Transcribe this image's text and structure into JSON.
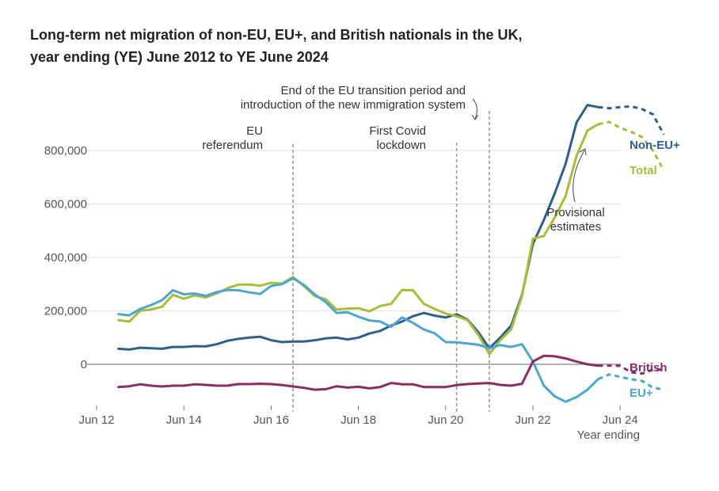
{
  "title": {
    "line1": "Long-term net migration of non-EU, EU+, and British nationals in the UK,",
    "line2": "year ending (YE) June 2012 to YE June 2024"
  },
  "chart_data": {
    "type": "line",
    "x_tick_labels": [
      "Jun 12",
      "Jun 14",
      "Jun 16",
      "Jun 18",
      "Jun 20",
      "Jun 22",
      "Jun 24"
    ],
    "x_tick_years": [
      2012,
      2014,
      2016,
      2018,
      2020,
      2022,
      2024
    ],
    "xlabel": "Year ending",
    "y_tick_labels": [
      "0",
      "200,000",
      "400,000",
      "600,000",
      "800,000"
    ],
    "y_tick_values": [
      0,
      200000,
      400000,
      600000,
      800000
    ],
    "ylim": [
      -150000,
      1000000
    ],
    "grid": "horizontal",
    "x_start": 2012.5,
    "x_step": 0.25,
    "provisional_from": 2023.5,
    "series": [
      {
        "name": "Non-EU+",
        "color": "#2e5f8f",
        "values": [
          58000,
          55000,
          62000,
          60000,
          58000,
          65000,
          65000,
          68000,
          67000,
          75000,
          88000,
          95000,
          100000,
          103000,
          90000,
          83000,
          85000,
          85000,
          90000,
          97000,
          100000,
          93000,
          100000,
          115000,
          125000,
          145000,
          160000,
          180000,
          192000,
          182000,
          175000,
          187000,
          167000,
          120000,
          60000,
          100000,
          145000,
          260000,
          450000,
          540000,
          640000,
          750000,
          905000,
          970000,
          962000,
          958000,
          962000,
          965000,
          955000,
          935000,
          860000
        ]
      },
      {
        "name": "Total",
        "color": "#a8bd3a",
        "values": [
          165000,
          160000,
          200000,
          205000,
          215000,
          260000,
          245000,
          258000,
          250000,
          265000,
          285000,
          298000,
          298000,
          294000,
          305000,
          302000,
          327000,
          293000,
          255000,
          243000,
          205000,
          208000,
          210000,
          198000,
          218000,
          226000,
          278000,
          277000,
          226000,
          207000,
          190000,
          180000,
          165000,
          110000,
          38000,
          90000,
          130000,
          255000,
          470000,
          480000,
          550000,
          630000,
          780000,
          875000,
          898000,
          907000,
          885000,
          870000,
          850000,
          800000,
          725000
        ]
      },
      {
        "name": "EU+",
        "color": "#4ea5d0",
        "values": [
          188000,
          183000,
          207000,
          222000,
          240000,
          277000,
          262000,
          265000,
          256000,
          270000,
          278000,
          277000,
          269000,
          263000,
          293000,
          300000,
          322000,
          297000,
          261000,
          233000,
          192000,
          195000,
          178000,
          164000,
          160000,
          140000,
          175000,
          155000,
          130000,
          116000,
          83000,
          82000,
          78000,
          73000,
          60000,
          72000,
          65000,
          75000,
          10000,
          -80000,
          -120000,
          -140000,
          -123000,
          -95000,
          -55000,
          -38000,
          -47000,
          -56000,
          -62000,
          -87000,
          -95000
        ]
      },
      {
        "name": "British",
        "color": "#8a2d64",
        "values": [
          -85000,
          -82000,
          -75000,
          -80000,
          -83000,
          -80000,
          -80000,
          -75000,
          -77000,
          -80000,
          -80000,
          -74000,
          -74000,
          -73000,
          -74000,
          -78000,
          -83000,
          -88000,
          -95000,
          -93000,
          -82000,
          -87000,
          -84000,
          -90000,
          -85000,
          -70000,
          -75000,
          -75000,
          -85000,
          -85000,
          -85000,
          -78000,
          -74000,
          -72000,
          -70000,
          -77000,
          -80000,
          -73000,
          10000,
          32000,
          30000,
          22000,
          10000,
          0,
          -5000,
          -5000,
          -6000,
          -30000,
          -35000,
          -20000,
          -20000
        ]
      }
    ],
    "vlines": [
      {
        "x": 2016.5,
        "label": [
          "EU",
          "referendum"
        ]
      },
      {
        "x": 2020.25,
        "label": [
          "First Covid",
          "lockdown"
        ]
      },
      {
        "x": 2021.0,
        "label": [
          "End of the EU transition period and",
          "introduction of the new immigration system"
        ]
      }
    ],
    "provisional_label": [
      "Provisional",
      "estimates"
    ]
  }
}
